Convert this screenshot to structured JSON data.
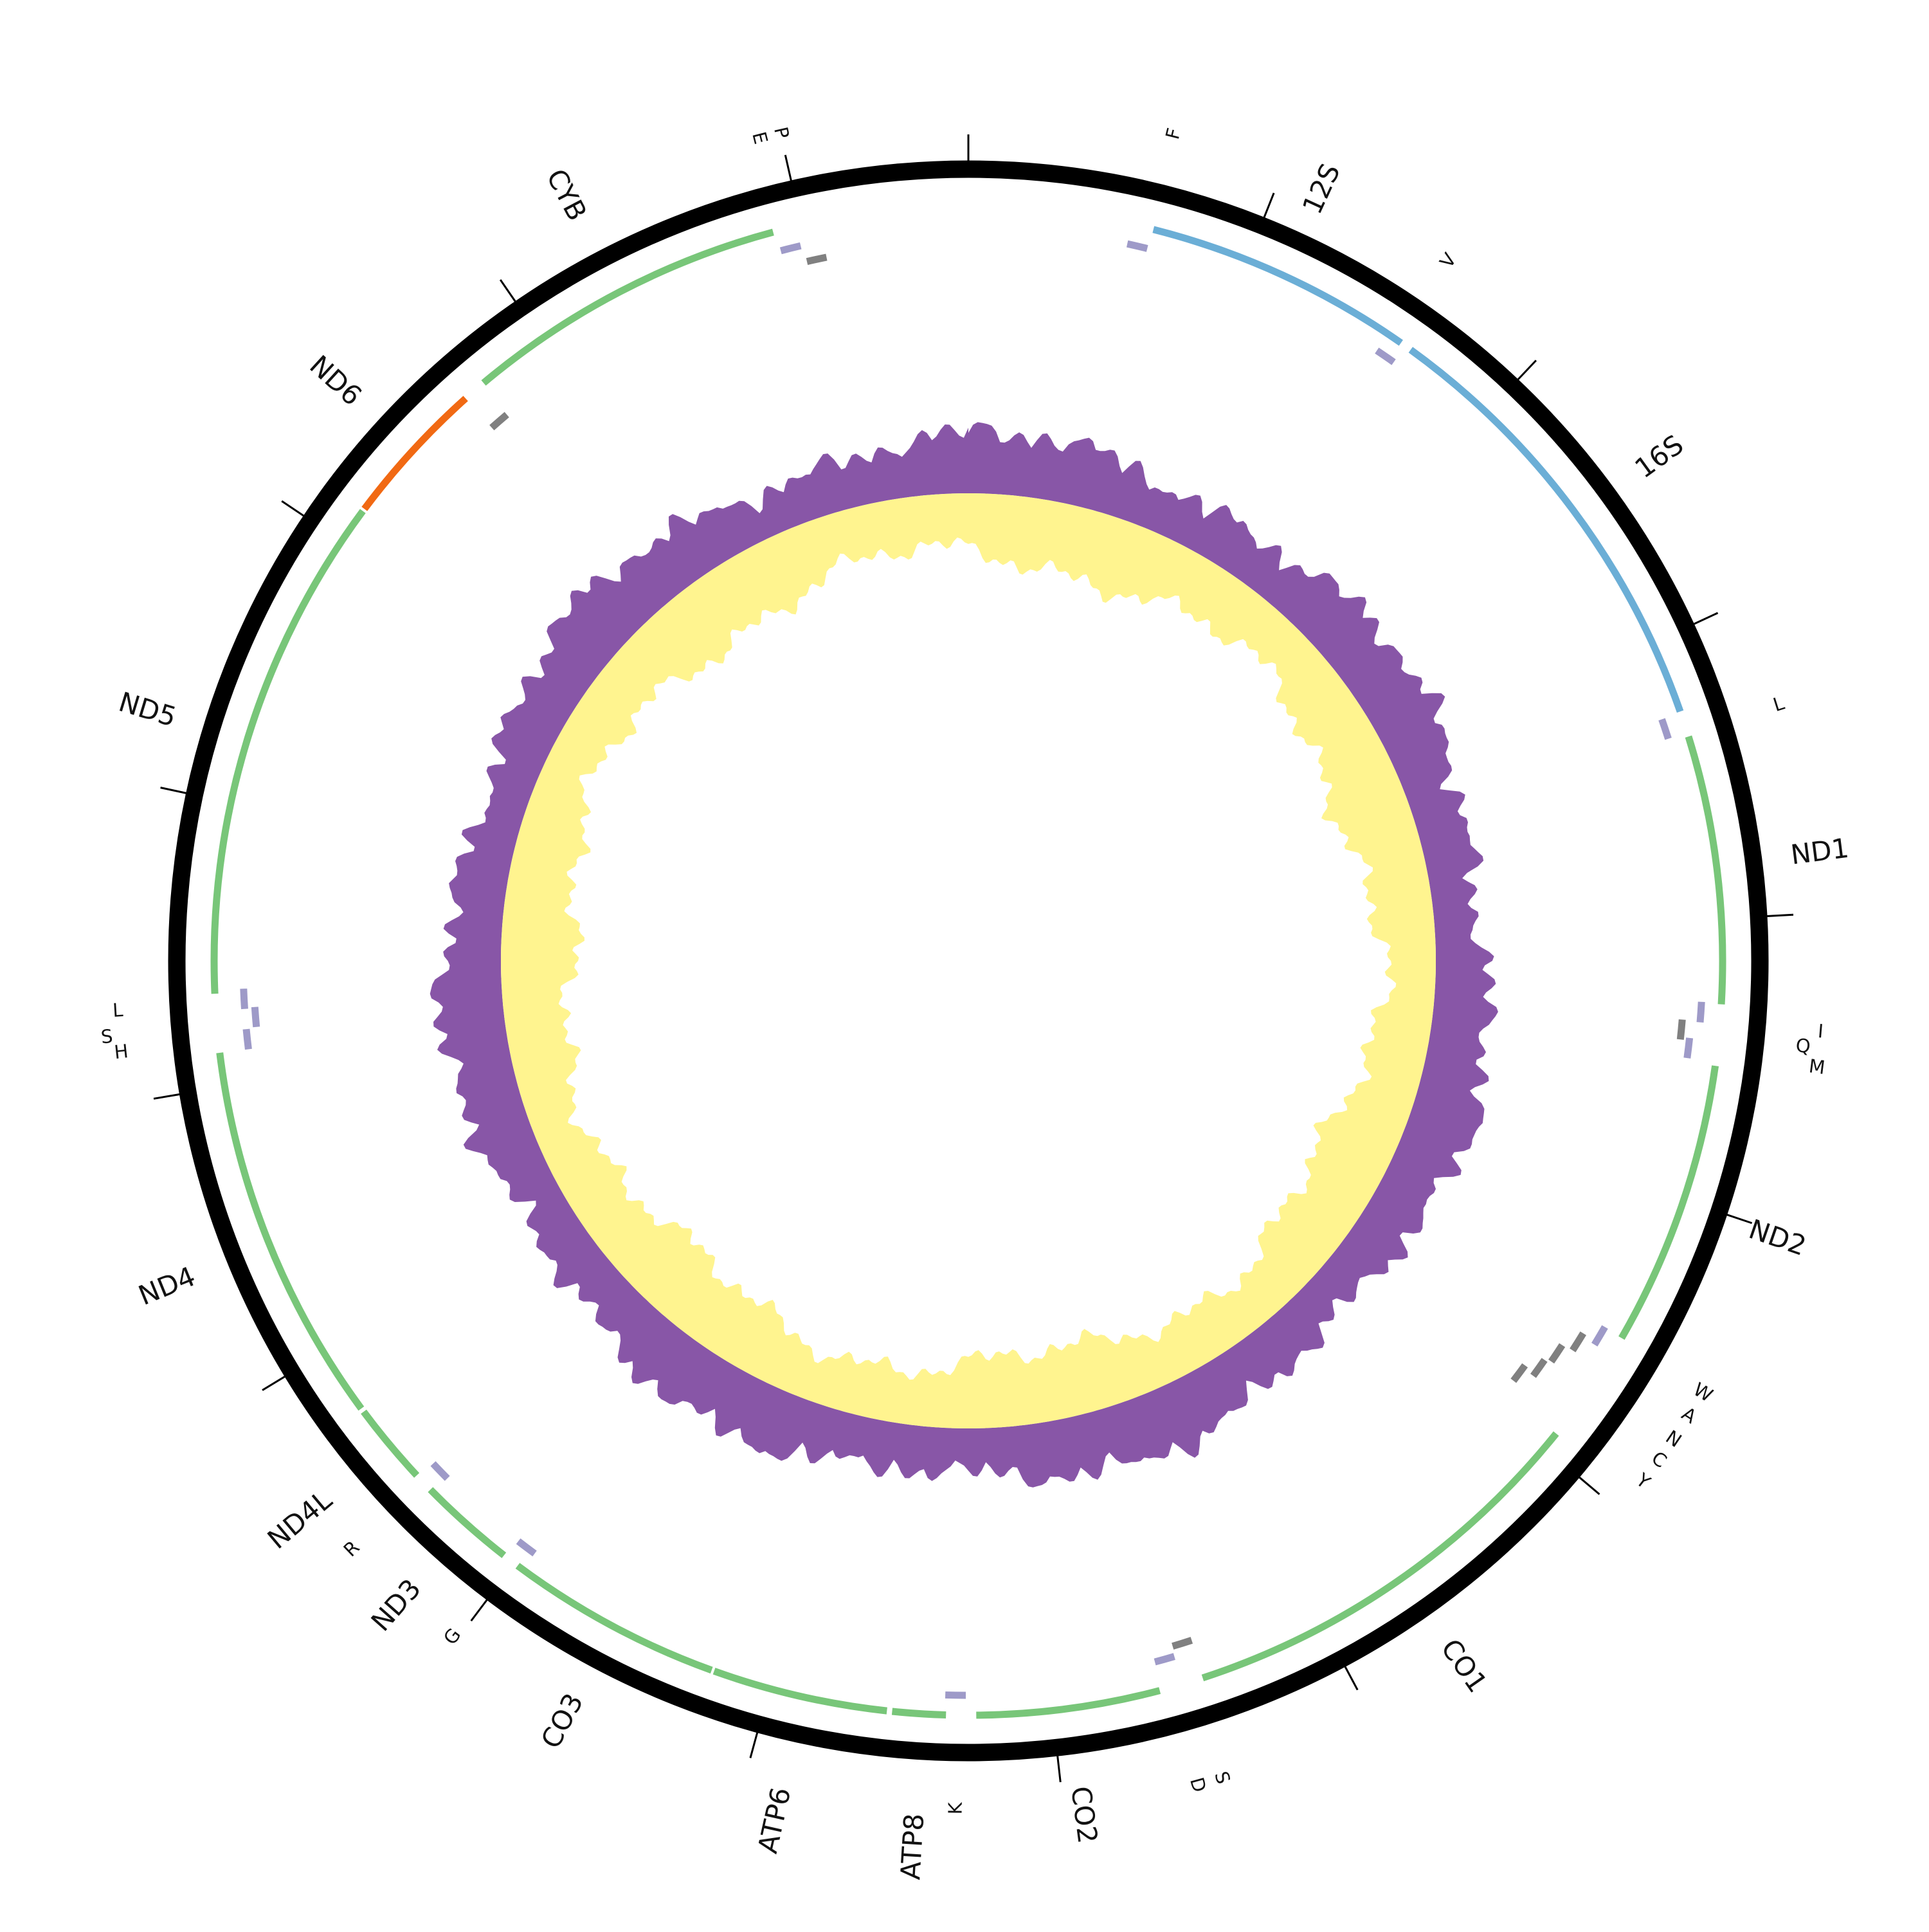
{
  "labels": [
    "F",
    "12S",
    "V",
    "16S",
    "L",
    "ND1",
    "I",
    "Q",
    "M",
    "ND2",
    "W",
    "A",
    "N",
    "C",
    "Y",
    "CO1",
    "S",
    "D",
    "CO2",
    "K",
    "ATP8",
    "ATP6",
    "CO3",
    "G",
    "ND3",
    "R",
    "ND4L",
    "ND4",
    "H",
    "S",
    "L",
    "ND5",
    "ND6",
    "E",
    "P",
    "CYB"
  ]
}
